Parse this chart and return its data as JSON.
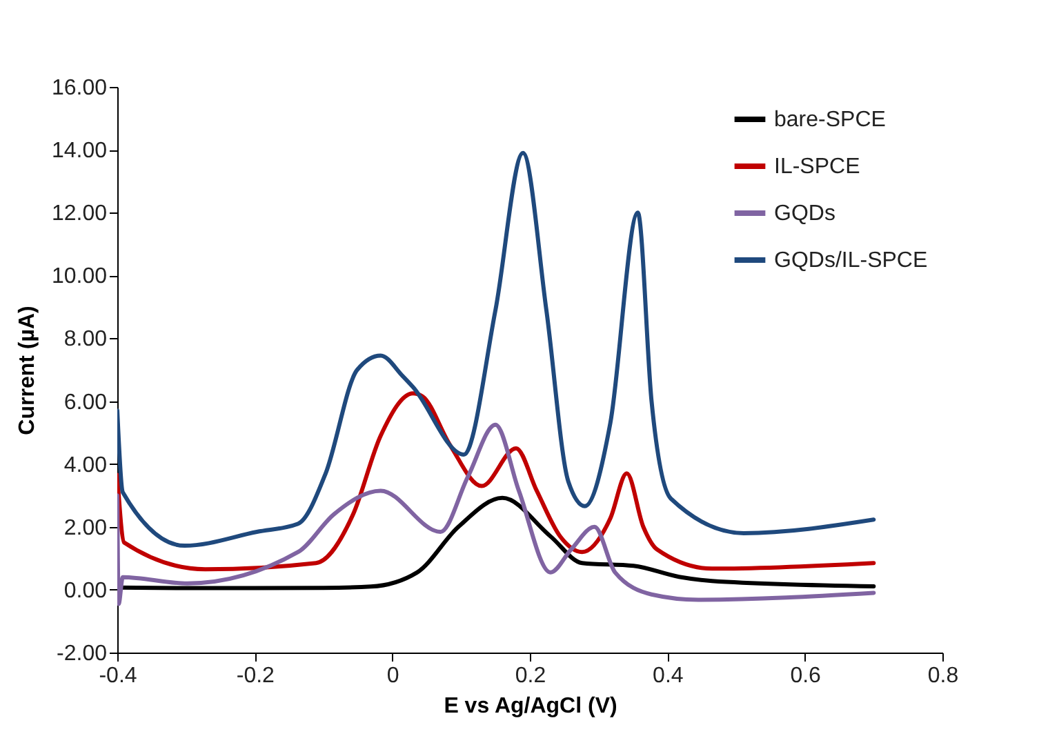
{
  "chart_data": {
    "type": "line",
    "xlabel": "E vs Ag/AgCl (V)",
    "ylabel": "Current (µA)",
    "xlim": [
      -0.4,
      0.8
    ],
    "xticks": [
      -0.4,
      -0.2,
      0,
      0.2,
      0.4,
      0.6,
      0.8
    ],
    "ylim": [
      -2,
      16
    ],
    "yticks": [
      {
        "value": -2,
        "label": "-2.00"
      },
      {
        "value": 0,
        "label": "0.00"
      },
      {
        "value": 2,
        "label": "2.00"
      },
      {
        "value": 4,
        "label": "4.00"
      },
      {
        "value": 6,
        "label": "6.00"
      },
      {
        "value": 8,
        "label": "8.00"
      },
      {
        "value": 10,
        "label": "10.00"
      },
      {
        "value": 12,
        "label": "12.00"
      },
      {
        "value": 14,
        "label": "14.00"
      },
      {
        "value": 16,
        "label": "16.00"
      }
    ],
    "grid": false,
    "legend": "top right",
    "series": [
      {
        "name": "bare-SPCE",
        "color": "#000000",
        "x": [
          -0.4,
          -0.3,
          -0.2,
          -0.1,
          -0.031,
          0.036,
          0.096,
          0.16,
          0.23,
          0.276,
          0.351,
          0.417,
          0.465,
          0.7
        ],
        "values": [
          0.07,
          0.05,
          0.05,
          0.06,
          0.1,
          0.55,
          2.0,
          2.92,
          1.7,
          0.85,
          0.76,
          0.41,
          0.28,
          0.11
        ]
      },
      {
        "name": "IL-SPCE",
        "color": "#c00000",
        "x": [
          -0.4,
          -0.39,
          -0.272,
          -0.111,
          -0.057,
          -0.017,
          0.03,
          0.044,
          0.084,
          0.13,
          0.18,
          0.21,
          0.244,
          0.276,
          0.317,
          0.341,
          0.365,
          0.385,
          0.465,
          0.7
        ],
        "values": [
          3.65,
          1.5,
          0.65,
          0.85,
          2.4,
          4.9,
          6.25,
          6.15,
          4.6,
          3.3,
          4.5,
          3.15,
          1.7,
          1.2,
          2.27,
          3.7,
          2.0,
          1.28,
          0.67,
          0.85
        ]
      },
      {
        "name": "GQDs",
        "color": "#8064a2",
        "x": [
          -0.4,
          -0.398,
          -0.392,
          -0.298,
          -0.137,
          -0.085,
          -0.017,
          0.07,
          0.11,
          0.15,
          0.184,
          0.23,
          0.26,
          0.294,
          0.324,
          0.377,
          0.445,
          0.7
        ],
        "values": [
          3.0,
          -0.45,
          0.4,
          0.2,
          1.2,
          2.4,
          3.15,
          1.84,
          3.6,
          5.25,
          3.15,
          0.55,
          1.28,
          2.0,
          0.55,
          -0.15,
          -0.32,
          -0.1
        ]
      },
      {
        "name": "GQDs/IL-SPCE",
        "color": "#1f497d",
        "x": [
          -0.4,
          -0.392,
          -0.302,
          -0.197,
          -0.137,
          -0.097,
          -0.051,
          -0.017,
          0.015,
          0.03,
          0.104,
          0.15,
          0.19,
          0.224,
          0.256,
          0.28,
          0.317,
          0.357,
          0.377,
          0.405,
          0.511,
          0.7
        ],
        "values": [
          5.7,
          3.1,
          1.4,
          1.84,
          2.1,
          3.7,
          7.0,
          7.45,
          6.8,
          6.45,
          4.3,
          8.9,
          13.9,
          8.9,
          3.44,
          2.66,
          5.3,
          12.0,
          6.0,
          2.9,
          1.8,
          2.23
        ]
      }
    ]
  }
}
